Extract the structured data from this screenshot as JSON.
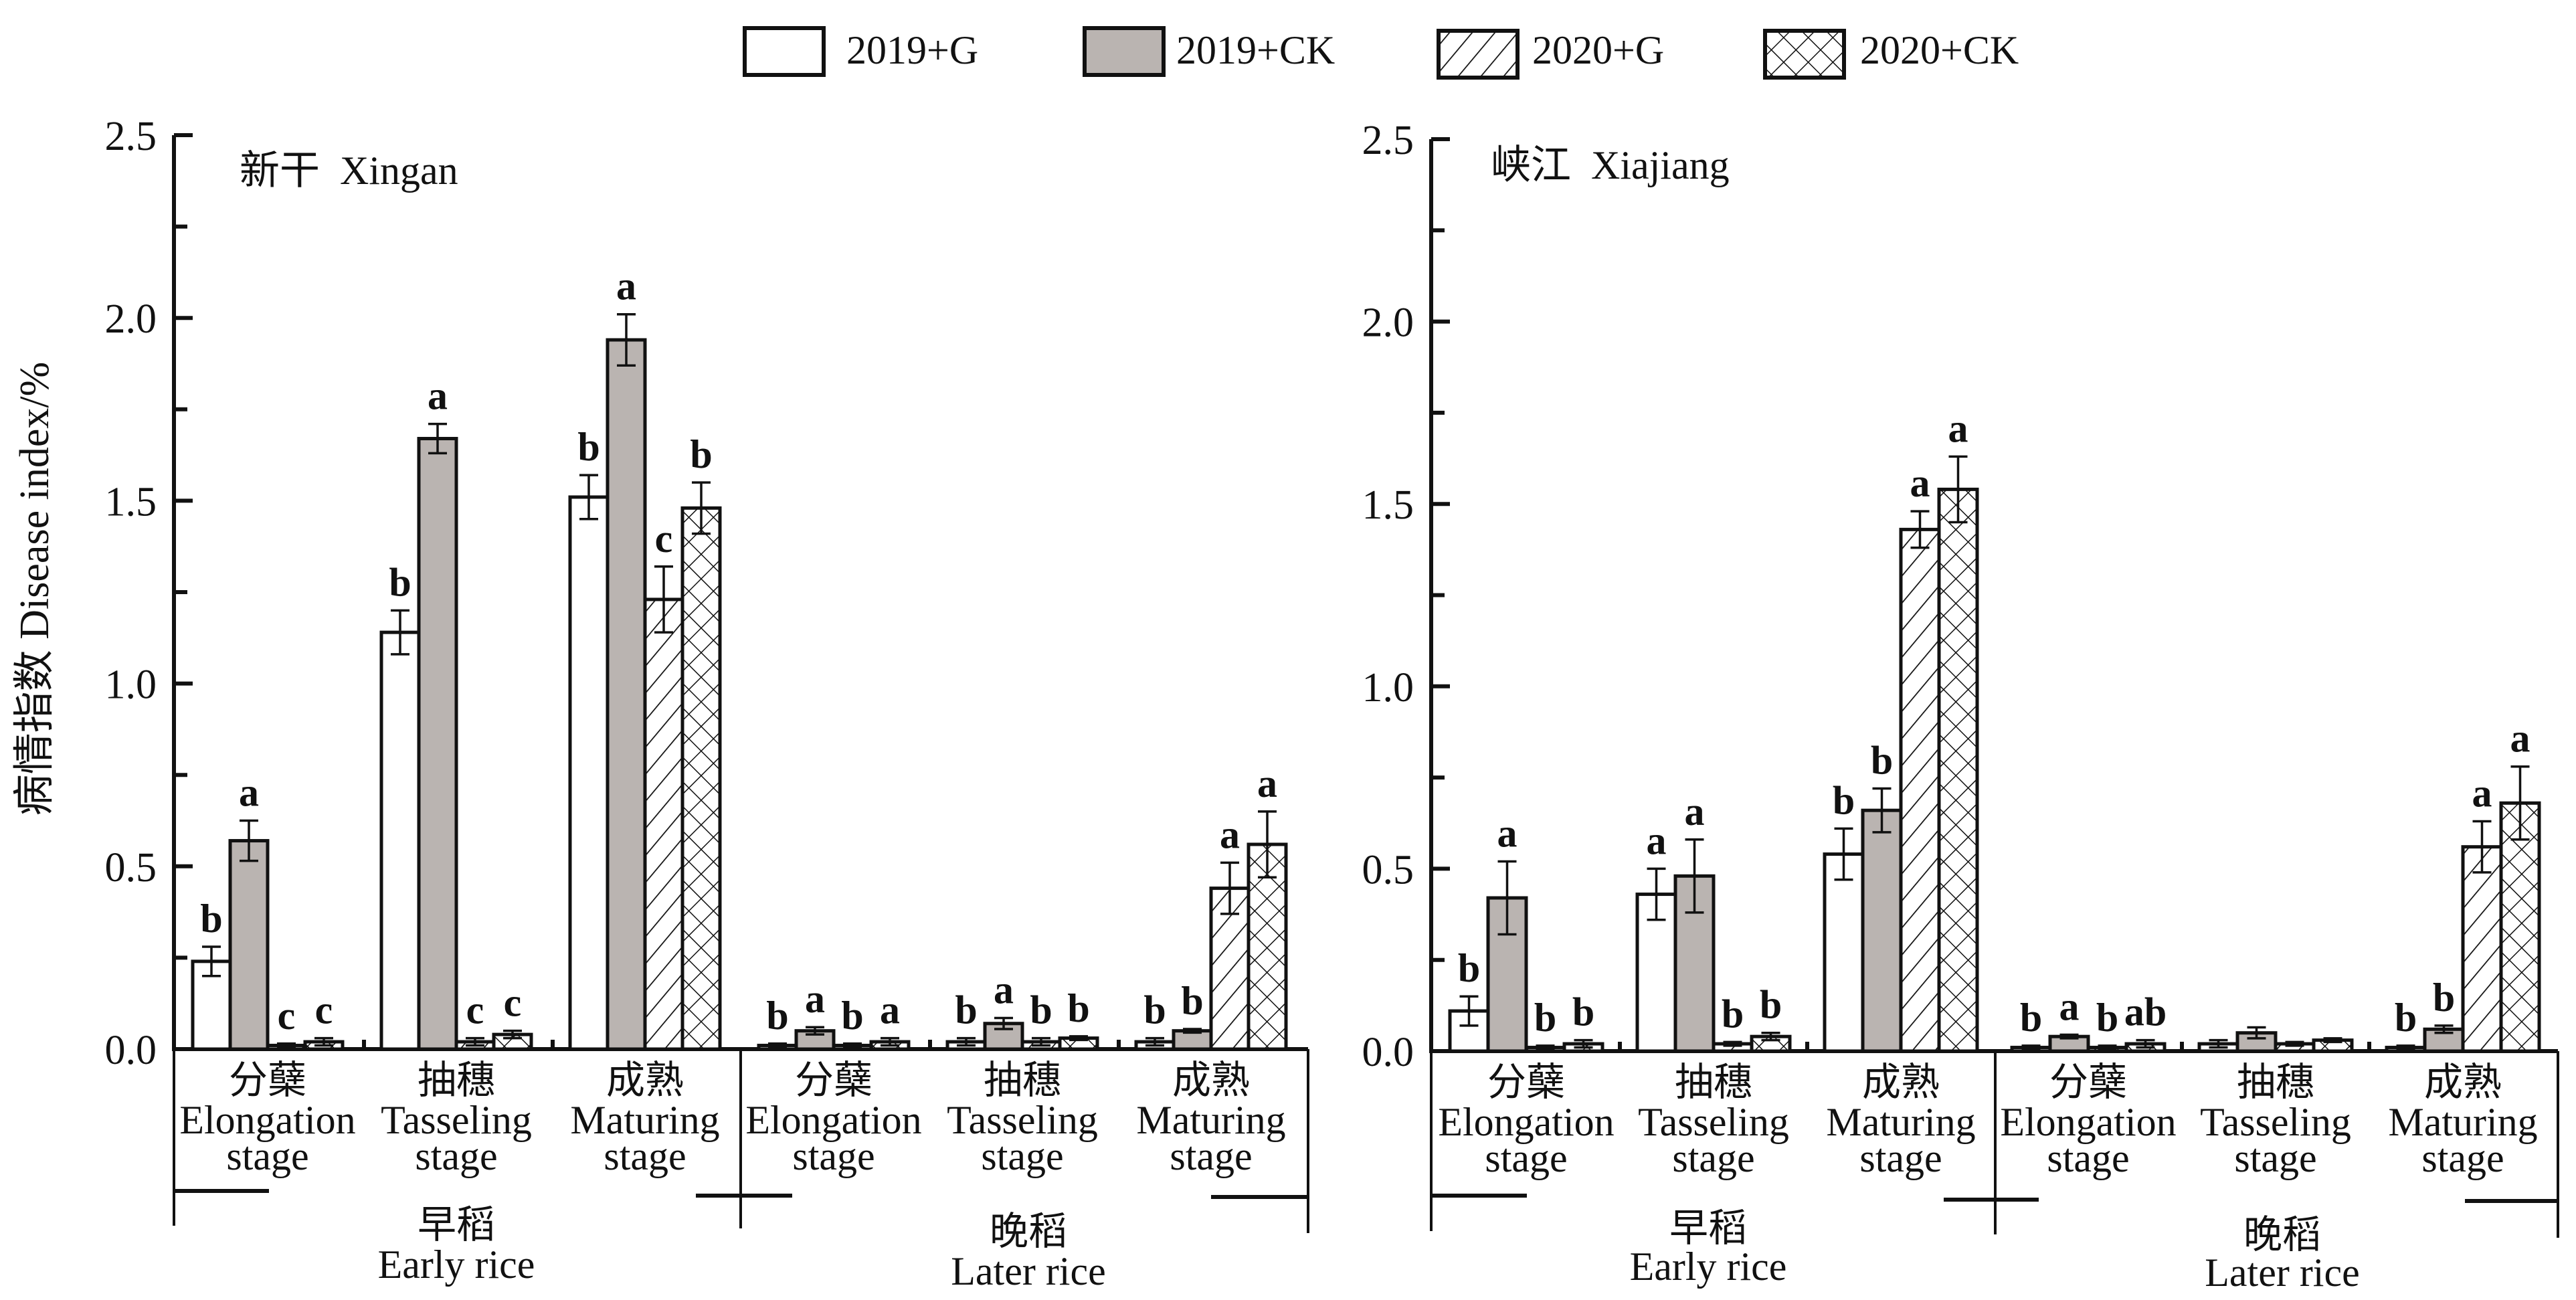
{
  "legend": [
    {
      "label": "2019+G",
      "pattern": "open"
    },
    {
      "label": "2019+CK",
      "pattern": "gray"
    },
    {
      "label": "2020+G",
      "pattern": "hatch"
    },
    {
      "label": "2020+CK",
      "pattern": "crosshatch"
    }
  ],
  "colors": {
    "ink": "#111111",
    "gray_fill": "#bab4b1",
    "background": "#ffffff"
  },
  "chart_data": [
    {
      "type": "bar",
      "title": "新干  Xingan",
      "ylabel": "病情指数 Disease index/%",
      "xlabel": "",
      "ylim": [
        0,
        2.5
      ],
      "yticks": [
        "0.0",
        "0.5",
        "1.0",
        "1.5",
        "2.0",
        "2.5"
      ],
      "minor_tick_step": 0.25,
      "grid": false,
      "legend_position": "top-center",
      "seasons": [
        {
          "cn": "早稻",
          "en": "Early rice"
        },
        {
          "cn": "晚稻",
          "en": "Later rice"
        }
      ],
      "categories": [
        {
          "season": 0,
          "cn": "分蘖",
          "en1": "Elongation",
          "en2": "stage"
        },
        {
          "season": 0,
          "cn": "抽穗",
          "en1": "Tasseling",
          "en2": "stage"
        },
        {
          "season": 0,
          "cn": "成熟",
          "en1": "Maturing",
          "en2": "stage"
        },
        {
          "season": 1,
          "cn": "分蘖",
          "en1": "Elongation",
          "en2": "stage"
        },
        {
          "season": 1,
          "cn": "抽穗",
          "en1": "Tasseling",
          "en2": "stage"
        },
        {
          "season": 1,
          "cn": "成熟",
          "en1": "Maturing",
          "en2": "stage"
        }
      ],
      "series": [
        {
          "name": "2019+G",
          "values": [
            0.24,
            1.14,
            1.51,
            0.01,
            0.02,
            0.02
          ],
          "errors": [
            0.04,
            0.06,
            0.06,
            0.005,
            0.01,
            0.01
          ],
          "letters": [
            "b",
            "b",
            "b",
            "b",
            "b",
            "b"
          ]
        },
        {
          "name": "2019+CK",
          "values": [
            0.57,
            1.67,
            1.94,
            0.05,
            0.07,
            0.05
          ],
          "errors": [
            0.055,
            0.04,
            0.07,
            0.01,
            0.015,
            0.005
          ],
          "letters": [
            "a",
            "a",
            "a",
            "a",
            "a",
            "b"
          ]
        },
        {
          "name": "2020+G",
          "values": [
            0.01,
            0.02,
            1.23,
            0.01,
            0.02,
            0.44
          ],
          "errors": [
            0.005,
            0.01,
            0.09,
            0.005,
            0.01,
            0.07
          ],
          "letters": [
            "c",
            "c",
            "c",
            "b",
            "b",
            "a"
          ]
        },
        {
          "name": "2020+CK",
          "values": [
            0.02,
            0.04,
            1.48,
            0.02,
            0.03,
            0.56
          ],
          "errors": [
            0.01,
            0.01,
            0.07,
            0.01,
            0.005,
            0.09
          ],
          "letters": [
            "c",
            "c",
            "b",
            "a",
            "b",
            "a"
          ]
        }
      ]
    },
    {
      "type": "bar",
      "title": "峡江  Xiajiang",
      "ylabel": "",
      "xlabel": "",
      "ylim": [
        0,
        2.5
      ],
      "yticks": [
        "0.0",
        "0.5",
        "1.0",
        "1.5",
        "2.0",
        "2.5"
      ],
      "minor_tick_step": 0.25,
      "grid": false,
      "seasons": [
        {
          "cn": "早稻",
          "en": "Early rice"
        },
        {
          "cn": "晚稻",
          "en": "Later rice"
        }
      ],
      "categories": [
        {
          "season": 0,
          "cn": "分蘖",
          "en1": "Elongation",
          "en2": "stage"
        },
        {
          "season": 0,
          "cn": "抽穗",
          "en1": "Tasseling",
          "en2": "stage"
        },
        {
          "season": 0,
          "cn": "成熟",
          "en1": "Maturing",
          "en2": "stage"
        },
        {
          "season": 1,
          "cn": "分蘖",
          "en1": "Elongation",
          "en2": "stage"
        },
        {
          "season": 1,
          "cn": "抽穗",
          "en1": "Tasseling",
          "en2": "stage"
        },
        {
          "season": 1,
          "cn": "成熟",
          "en1": "Maturing",
          "en2": "stage"
        }
      ],
      "series": [
        {
          "name": "2019+G",
          "values": [
            0.11,
            0.43,
            0.54,
            0.01,
            0.02,
            0.01
          ],
          "errors": [
            0.04,
            0.07,
            0.07,
            0.005,
            0.01,
            0.005
          ],
          "letters": [
            "b",
            "a",
            "b",
            "b",
            "",
            "b"
          ]
        },
        {
          "name": "2019+CK",
          "values": [
            0.42,
            0.48,
            0.66,
            0.04,
            0.05,
            0.06
          ],
          "errors": [
            0.1,
            0.1,
            0.06,
            0.005,
            0.015,
            0.01
          ],
          "letters": [
            "a",
            "a",
            "b",
            "a",
            "",
            "b"
          ]
        },
        {
          "name": "2020+G",
          "values": [
            0.01,
            0.02,
            1.43,
            0.01,
            0.02,
            0.56
          ],
          "errors": [
            0.005,
            0.005,
            0.05,
            0.005,
            0.005,
            0.07
          ],
          "letters": [
            "b",
            "b",
            "a",
            "b",
            "",
            "a"
          ]
        },
        {
          "name": "2020+CK",
          "values": [
            0.02,
            0.04,
            1.54,
            0.02,
            0.03,
            0.68
          ],
          "errors": [
            0.01,
            0.01,
            0.09,
            0.01,
            0.005,
            0.1
          ],
          "letters": [
            "b",
            "b",
            "a",
            "ab",
            "",
            "a"
          ]
        }
      ]
    }
  ]
}
